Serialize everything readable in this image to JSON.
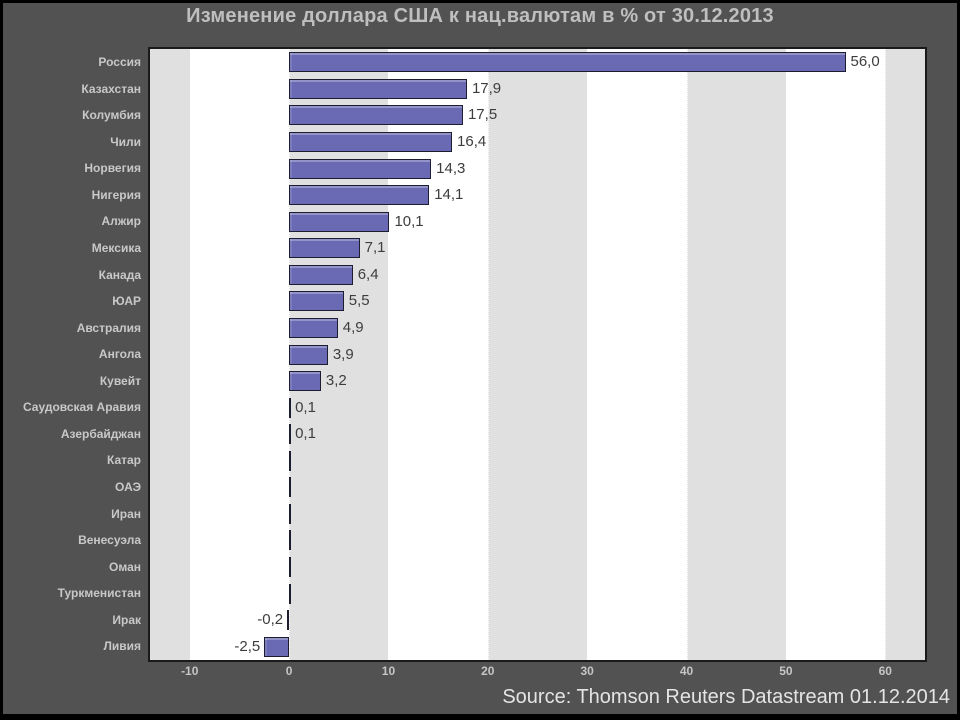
{
  "colors": {
    "background": "#525252",
    "title_text": "#bfbfbf",
    "label_text": "#c8c8c8",
    "tick_text": "#c6c6c6",
    "value_text": "#3d3d3d",
    "source_text": "#e4e4e4",
    "bar_fill": "#6a6ab4",
    "bar_border": "#1d1d32",
    "stripe_gray": "#e0e0e0",
    "stripe_white": "#ffffff",
    "plot_border": "#1a1a1a"
  },
  "chart_data": {
    "type": "bar",
    "orientation": "horizontal",
    "title": "Изменение доллара США к нац.валютам в % от 30.12.2013",
    "source": "Source: Thomson Reuters Datastream 01.12.2014",
    "categories": [
      "Россия",
      "Казахстан",
      "Колумбия",
      "Чили",
      "Норвегия",
      "Нигерия",
      "Алжир",
      "Мексика",
      "Канада",
      "ЮАР",
      "Австралия",
      "Ангола",
      "Кувейт",
      "Саудовская Аравия",
      "Азербайджан",
      "Катар",
      "ОАЭ",
      "Иран",
      "Венесуэла",
      "Оман",
      "Туркменистан",
      "Ирак",
      "Ливия"
    ],
    "values": [
      56.0,
      17.9,
      17.5,
      16.4,
      14.3,
      14.1,
      10.1,
      7.1,
      6.4,
      5.5,
      4.9,
      3.9,
      3.2,
      0.1,
      0.1,
      0,
      0,
      0,
      0,
      0,
      0,
      -0.2,
      -2.5
    ],
    "value_labels": [
      "56,0",
      "17,9",
      "17,5",
      "16,4",
      "14,3",
      "14,1",
      "10,1",
      "7,1",
      "6,4",
      "5,5",
      "4,9",
      "3,9",
      "3,2",
      "0,1",
      "0,1",
      "",
      "",
      "",
      "",
      "",
      "",
      "-0,2",
      "-2,5"
    ],
    "x_ticks": [
      -10,
      0,
      10,
      20,
      30,
      40,
      50,
      60
    ],
    "x_tick_labels": [
      "-10",
      "0",
      "10",
      "20",
      "30",
      "40",
      "50",
      "60"
    ],
    "xlim": [
      -14,
      64
    ],
    "xlabel": "",
    "ylabel": "",
    "grid": true,
    "gridline_style": "dotted-vertical-at-ticks",
    "plot_background": "alternating gray/white vertical bands every 10 units starting gray at left edge",
    "legend": "none"
  }
}
